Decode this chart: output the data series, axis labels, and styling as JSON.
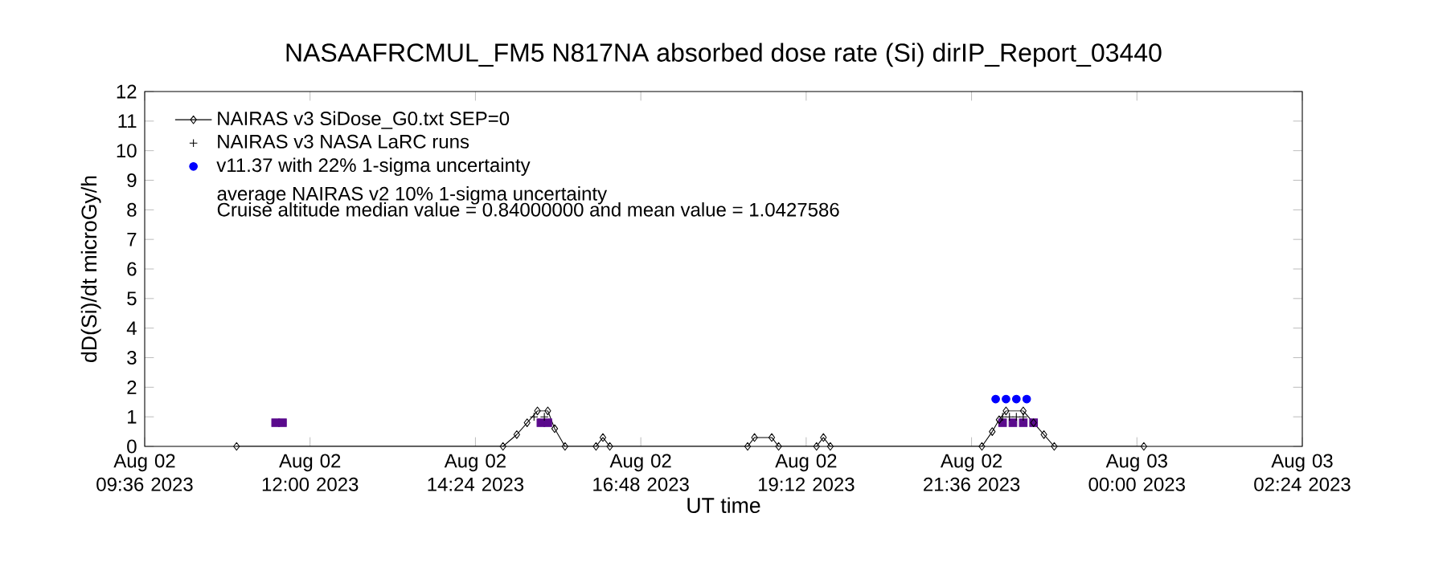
{
  "chart_data": {
    "type": "scatter",
    "title": "NASAAFRCMUL_FM5   N817NA absorbed dose rate (Si) dirIP_Report_03440",
    "xlabel": "UT time",
    "ylabel": "dD(Si)/dt microGy/h",
    "xlim": [
      "2023-08-02T09:36",
      "2023-08-03T02:24"
    ],
    "ylim": [
      0,
      12
    ],
    "xticks": [
      {
        "value": "2023-08-02T09:36",
        "label": "Aug 02 09:36 2023"
      },
      {
        "value": "2023-08-02T12:00",
        "label": "Aug 02 12:00 2023"
      },
      {
        "value": "2023-08-02T14:24",
        "label": "Aug 02 14:24 2023"
      },
      {
        "value": "2023-08-02T16:48",
        "label": "Aug 02 16:48 2023"
      },
      {
        "value": "2023-08-02T19:12",
        "label": "Aug 02 19:12 2023"
      },
      {
        "value": "2023-08-02T21:36",
        "label": "Aug 02 21:36 2023"
      },
      {
        "value": "2023-08-03T00:00",
        "label": "Aug 03 00:00 2023"
      },
      {
        "value": "2023-08-03T02:24",
        "label": "Aug 03 02:24 2023"
      }
    ],
    "yticks": [
      0,
      1,
      2,
      3,
      4,
      5,
      6,
      7,
      8,
      9,
      10,
      11,
      12
    ],
    "legend": "top left",
    "annotations": [
      "average NAIRAS v2 10% 1-sigma uncertainty",
      "Cruise altitude median value = 0.84000000 and mean value = 1.0427586"
    ],
    "series": [
      {
        "name": "NAIRAS v3 SiDose_G0.txt SEP=0",
        "type": "line",
        "marker": "diamond",
        "color": "#000000",
        "x": [
          "2023-08-02T10:56",
          "2023-08-02T14:48",
          "2023-08-02T15:00",
          "2023-08-02T15:09",
          "2023-08-02T15:18",
          "2023-08-02T15:27",
          "2023-08-02T15:33",
          "2023-08-02T15:42",
          "2023-08-02T16:09",
          "2023-08-02T16:15",
          "2023-08-02T16:21",
          "2023-08-02T18:21",
          "2023-08-02T18:27",
          "2023-08-02T18:42",
          "2023-08-02T18:48",
          "2023-08-02T19:21",
          "2023-08-02T19:27",
          "2023-08-02T19:33",
          "2023-08-02T21:45",
          "2023-08-02T21:54",
          "2023-08-02T22:00",
          "2023-08-02T22:06",
          "2023-08-02T22:21",
          "2023-08-02T22:30",
          "2023-08-02T22:39",
          "2023-08-02T22:48",
          "2023-08-03T00:06"
        ],
        "values": [
          0,
          0,
          0.4,
          0.8,
          1.2,
          1.2,
          0.6,
          0,
          0,
          0.3,
          0,
          0,
          0.3,
          0.3,
          0,
          0,
          0.3,
          0,
          0,
          0.5,
          0.9,
          1.2,
          1.2,
          0.8,
          0.4,
          0,
          0
        ]
      },
      {
        "name": "NAIRAS v3 NASA LaRC runs",
        "type": "scatter",
        "marker": "cross",
        "color": "#000000",
        "x": [
          "2023-08-02T15:15",
          "2023-08-02T15:24",
          "2023-08-02T22:03",
          "2023-08-02T22:09",
          "2023-08-02T22:15",
          "2023-08-02T22:21"
        ],
        "values": [
          1.0,
          1.0,
          1.0,
          1.0,
          1.0,
          1.0
        ]
      },
      {
        "name": "v11.37 with 22% 1-sigma uncertainty",
        "type": "scatter",
        "marker": "circle",
        "color": "#0000ff",
        "x": [
          "2023-08-02T21:57",
          "2023-08-02T22:06",
          "2023-08-02T22:15",
          "2023-08-02T22:24"
        ],
        "values": [
          1.6,
          1.6,
          1.6,
          1.6
        ]
      },
      {
        "marker": "square",
        "color": "#5a0a8c",
        "x": [
          "2023-08-02T11:30",
          "2023-08-02T11:36",
          "2023-08-02T15:21",
          "2023-08-02T15:27",
          "2023-08-02T22:03",
          "2023-08-02T22:12",
          "2023-08-02T22:21",
          "2023-08-02T22:30"
        ],
        "values": [
          0.8,
          0.8,
          0.8,
          0.8,
          0.8,
          0.8,
          0.8,
          0.8
        ]
      }
    ]
  }
}
